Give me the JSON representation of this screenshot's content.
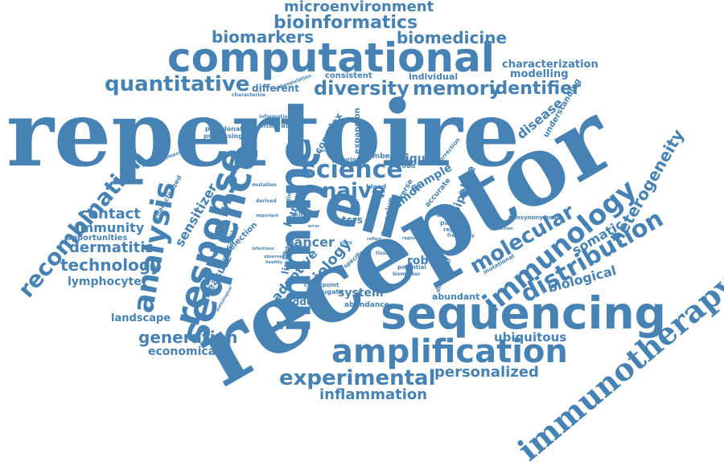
{
  "colors": {
    "word": "#4682b4",
    "background": "#ffffff"
  },
  "words": [
    {
      "text": "repertoire",
      "font": "serif"
    },
    {
      "text": "receptor",
      "font": "serif"
    },
    {
      "text": "computational",
      "font": "sans"
    },
    {
      "text": "sequencing",
      "font": "sans"
    },
    {
      "text": "cell",
      "font": "sans"
    },
    {
      "text": "immune",
      "font": "sans"
    },
    {
      "text": "immunotherapy",
      "font": "serif"
    },
    {
      "text": "amplification",
      "font": "sans"
    },
    {
      "text": "sequence",
      "font": "sans"
    },
    {
      "text": "response",
      "font": "sans"
    },
    {
      "text": "analysis",
      "font": "sans"
    },
    {
      "text": "recombination",
      "font": "sans"
    },
    {
      "text": "immunology",
      "font": "sans"
    },
    {
      "text": "distribution",
      "font": "sans"
    },
    {
      "text": "experimental",
      "font": "sans"
    },
    {
      "text": "bioinformatics",
      "font": "sans"
    },
    {
      "text": "microenvironment",
      "font": "sans"
    },
    {
      "text": "quantitative",
      "font": "sans"
    },
    {
      "text": "biomarkers",
      "font": "sans"
    },
    {
      "text": "biomedicine",
      "font": "sans"
    },
    {
      "text": "diversity",
      "font": "sans"
    },
    {
      "text": "memory",
      "font": "sans"
    },
    {
      "text": "identifier",
      "font": "sans"
    },
    {
      "text": "science",
      "font": "sans"
    },
    {
      "text": "naive",
      "font": "sans"
    },
    {
      "text": "molecular",
      "font": "sans"
    },
    {
      "text": "heterogeneity",
      "font": "sans"
    },
    {
      "text": "generation",
      "font": "sans"
    },
    {
      "text": "inflammation",
      "font": "sans"
    },
    {
      "text": "personalized",
      "font": "sans"
    },
    {
      "text": "technology",
      "font": "sans"
    },
    {
      "text": "dermatitis",
      "font": "sans"
    },
    {
      "text": "immunity",
      "font": "sans"
    },
    {
      "text": "contact",
      "font": "sans"
    },
    {
      "text": "lymphocyte",
      "font": "sans"
    },
    {
      "text": "opportunities",
      "font": "sans"
    },
    {
      "text": "landscape",
      "font": "sans"
    },
    {
      "text": "economical",
      "font": "sans"
    },
    {
      "text": "ubiquitous",
      "font": "sans"
    },
    {
      "text": "biological",
      "font": "sans"
    },
    {
      "text": "somatic",
      "font": "sans"
    },
    {
      "text": "characterization",
      "font": "sans"
    },
    {
      "text": "modelling",
      "font": "sans"
    },
    {
      "text": "individual",
      "font": "sans"
    },
    {
      "text": "different",
      "font": "sans"
    },
    {
      "text": "consistent",
      "font": "sans"
    },
    {
      "text": "subpopulation",
      "font": "sans"
    },
    {
      "text": "characterize",
      "font": "sans"
    },
    {
      "text": "disease",
      "font": "sans"
    },
    {
      "text": "understanding",
      "font": "sans"
    },
    {
      "text": "complex",
      "font": "sans"
    },
    {
      "text": "expansion",
      "font": "sans"
    },
    {
      "text": "pipeline",
      "font": "sans"
    },
    {
      "text": "sample",
      "font": "sans"
    },
    {
      "text": "unique",
      "font": "sans"
    },
    {
      "text": "sensitizer",
      "font": "sans"
    },
    {
      "text": "measure",
      "font": "sans"
    },
    {
      "text": "versatile",
      "font": "sans"
    },
    {
      "text": "selection",
      "font": "sans"
    },
    {
      "text": "ligation",
      "font": "sans"
    },
    {
      "text": "adaptive",
      "font": "sans"
    },
    {
      "text": "biology",
      "font": "sans"
    },
    {
      "text": "cancer",
      "font": "sans"
    },
    {
      "text": "tumor",
      "font": "sans"
    },
    {
      "text": "human",
      "font": "sans"
    },
    {
      "text": "tcrs",
      "font": "sans"
    },
    {
      "text": "robust",
      "font": "sans"
    },
    {
      "text": "system",
      "font": "sans"
    },
    {
      "text": "bladder",
      "font": "sans"
    },
    {
      "text": "abundant",
      "font": "sans"
    },
    {
      "text": "abundance",
      "font": "sans"
    },
    {
      "text": "conjugate",
      "font": "sans"
    },
    {
      "text": "checkpoint",
      "font": "sans"
    },
    {
      "text": "potential",
      "font": "sans"
    },
    {
      "text": "biomarker",
      "font": "sans"
    },
    {
      "text": "differential",
      "font": "sans"
    },
    {
      "text": "patient",
      "font": "sans"
    },
    {
      "text": "regional",
      "font": "sans"
    },
    {
      "text": "frequency",
      "font": "sans"
    },
    {
      "text": "algorithm",
      "font": "sans"
    },
    {
      "text": "prediction",
      "font": "sans"
    },
    {
      "text": "nonsynonymous",
      "font": "sans"
    },
    {
      "text": "mutational",
      "font": "sans"
    },
    {
      "text": "polyclonal",
      "font": "sans"
    },
    {
      "text": "processing",
      "font": "sans"
    },
    {
      "text": "integrated",
      "font": "sans"
    },
    {
      "text": "information",
      "font": "sans"
    },
    {
      "text": "rearrangement",
      "font": "sans"
    },
    {
      "text": "characterized",
      "font": "sans"
    },
    {
      "text": "mutation",
      "font": "sans"
    },
    {
      "text": "derived",
      "font": "sans"
    },
    {
      "text": "infectious",
      "font": "sans"
    },
    {
      "text": "important",
      "font": "sans"
    },
    {
      "text": "specific",
      "font": "sans"
    },
    {
      "text": "invasive",
      "font": "sans"
    },
    {
      "text": "diverse",
      "font": "sans"
    },
    {
      "text": "accurate",
      "font": "sans"
    },
    {
      "text": "correction",
      "font": "sans"
    },
    {
      "text": "broad",
      "font": "sans"
    },
    {
      "text": "number",
      "font": "sans"
    },
    {
      "text": "subset",
      "font": "sans"
    },
    {
      "text": "urine",
      "font": "sans"
    },
    {
      "text": "blood",
      "font": "sans"
    },
    {
      "text": "skin",
      "font": "sans"
    },
    {
      "text": "clinic",
      "font": "sans"
    },
    {
      "text": "tissue",
      "font": "sans"
    },
    {
      "text": "region",
      "font": "sans"
    },
    {
      "text": "insight",
      "font": "sans"
    },
    {
      "text": "molecule",
      "font": "sans"
    },
    {
      "text": "vitro",
      "font": "sans"
    },
    {
      "text": "reflect",
      "font": "sans"
    },
    {
      "text": "challenge",
      "font": "sans"
    },
    {
      "text": "observed",
      "font": "sans"
    },
    {
      "text": "healthy",
      "font": "sans"
    },
    {
      "text": "pathological",
      "font": "sans"
    },
    {
      "text": "efficiency",
      "font": "sans"
    },
    {
      "text": "error",
      "font": "sans"
    }
  ]
}
